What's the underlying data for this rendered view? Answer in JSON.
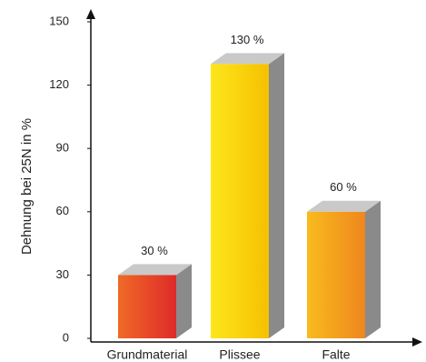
{
  "chart_data": {
    "type": "bar3d",
    "y_label": "Dehnung bei 25N in %",
    "categories": [
      "Grundmaterial",
      "Plissee",
      "Falte"
    ],
    "values": [
      30,
      130,
      60
    ],
    "value_labels": [
      "30 %",
      "130 %",
      "60 %"
    ],
    "colors": [
      [
        "#f06a26",
        "#de2a2a"
      ],
      [
        "#fde61c",
        "#f6c000"
      ],
      [
        "#f8bb1e",
        "#ef861e"
      ]
    ],
    "side_color": "#8a8a8a",
    "top_color": "#c9c9c9",
    "ylim": [
      0,
      150
    ],
    "yticks": [
      0,
      30,
      60,
      90,
      120,
      150
    ]
  }
}
